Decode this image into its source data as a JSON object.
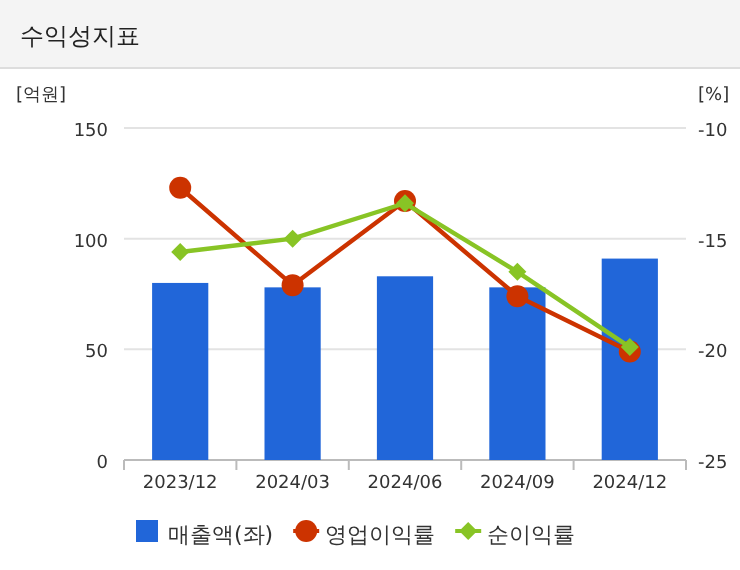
{
  "chart_data": {
    "type": "bar",
    "title": "수익성지표",
    "categories": [
      "2023/12",
      "2024/03",
      "2024/06",
      "2024/09",
      "2024/12"
    ],
    "ylabel": "[억원]",
    "y2label": "[%]",
    "series": [
      {
        "name": "매출액(좌)",
        "color": "#2166d9",
        "values": [
          80,
          78,
          83,
          78,
          91
        ]
      },
      {
        "name": "영업이익률",
        "type": "line",
        "axis": "y2",
        "marker": "circle",
        "color": "#cc3300",
        "values": [
          -12.7,
          -17.1,
          -13.3,
          -17.6,
          -20.1
        ]
      },
      {
        "name": "순이익률",
        "type": "line",
        "axis": "y2",
        "marker": "diamond",
        "color": "#88c425",
        "values": [
          -15.6,
          -15.0,
          -13.4,
          -16.5,
          -19.9
        ]
      }
    ],
    "ylim": [
      0,
      150
    ],
    "yticks": [
      0,
      50,
      100,
      150
    ],
    "y2lim": [
      -25,
      -10
    ],
    "y2ticks": [
      -25,
      -20,
      -15,
      -10
    ],
    "grid": "y",
    "legend": "bottom"
  }
}
